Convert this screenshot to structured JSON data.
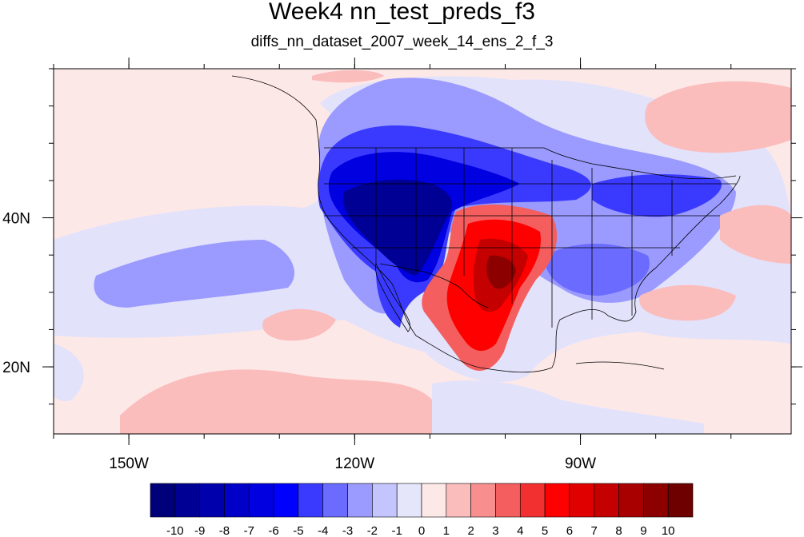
{
  "title": "Week4 nn_test_preds_f3",
  "subtitle": "diffs_nn_dataset_2007_week_14_ens_2_f_3",
  "map": {
    "lon_range": [
      -160,
      -62
    ],
    "lat_range": [
      11,
      60
    ],
    "lon_tick_labels": [
      {
        "lon": -150,
        "label": "150W"
      },
      {
        "lon": -120,
        "label": "120W"
      },
      {
        "lon": -90,
        "label": "90W"
      }
    ],
    "lat_tick_labels": [
      {
        "lat": 40,
        "label": "40N"
      },
      {
        "lat": 20,
        "label": "20N"
      }
    ],
    "background_color": "#fde8e8"
  },
  "colorbar": {
    "labels": [
      "-10",
      "-9",
      "-8",
      "-7",
      "-6",
      "-5",
      "-4",
      "-3",
      "-2",
      "-1",
      "0",
      "1",
      "2",
      "3",
      "4",
      "5",
      "6",
      "7",
      "8",
      "9",
      "10"
    ],
    "colors": [
      "#00007a",
      "#000094",
      "#0000ad",
      "#0000c8",
      "#0000e0",
      "#0000ff",
      "#3a3aff",
      "#6b6bff",
      "#9a9aff",
      "#c4c4ff",
      "#e6e6fb",
      "#fde8e8",
      "#fbbcbc",
      "#f88e8e",
      "#f45e5e",
      "#f23030",
      "#ff0000",
      "#e00000",
      "#c40000",
      "#a80000",
      "#8c0000",
      "#6e0000"
    ]
  }
}
